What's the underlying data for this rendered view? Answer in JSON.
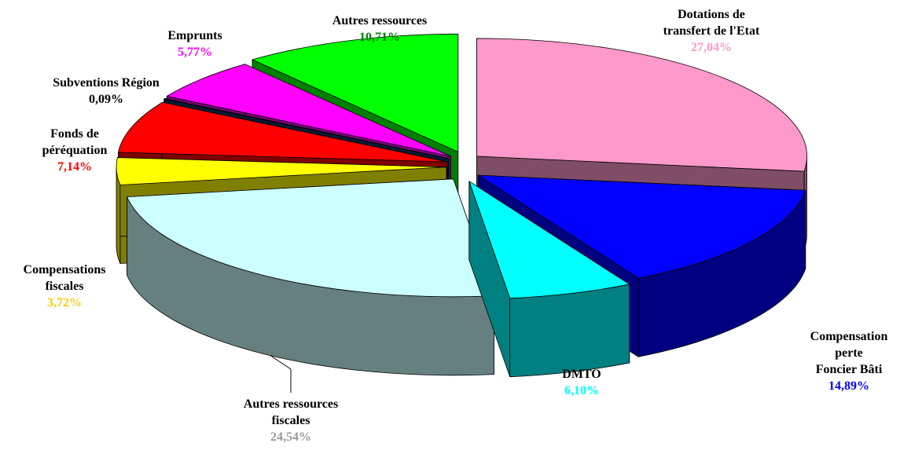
{
  "chart_data": {
    "type": "pie3d",
    "categories": [
      "Dotations de\ntransfert de l'Etat",
      "Compensation perte\nFoncier Bâti",
      "DMTO",
      "Autres ressources\nfiscales",
      "Compensations\nfiscales",
      "Fonds de\npéréquation",
      "Subventions Région",
      "Emprunts",
      "Autres ressources"
    ],
    "values": [
      27.04,
      14.89,
      6.1,
      24.54,
      3.72,
      7.14,
      0.09,
      5.77,
      10.71
    ],
    "value_labels": [
      "27,04%",
      "14,89%",
      "6,10%",
      "24,54%",
      "3,72%",
      "7,14%",
      "0,09%",
      "5,77%",
      "10,71%"
    ],
    "colors": [
      "#ff99cc",
      "#0000ff",
      "#00ffff",
      "#ccffff",
      "#ffff00",
      "#ff0000",
      "#003366",
      "#ff00ff",
      "#00ff00"
    ],
    "label_colors": [
      "#ff99cc",
      "#0000ff",
      "#00ffff",
      "#999999",
      "#ffcc00",
      "#ff0000",
      "#000000",
      "#ff00ff",
      "#008000"
    ]
  }
}
